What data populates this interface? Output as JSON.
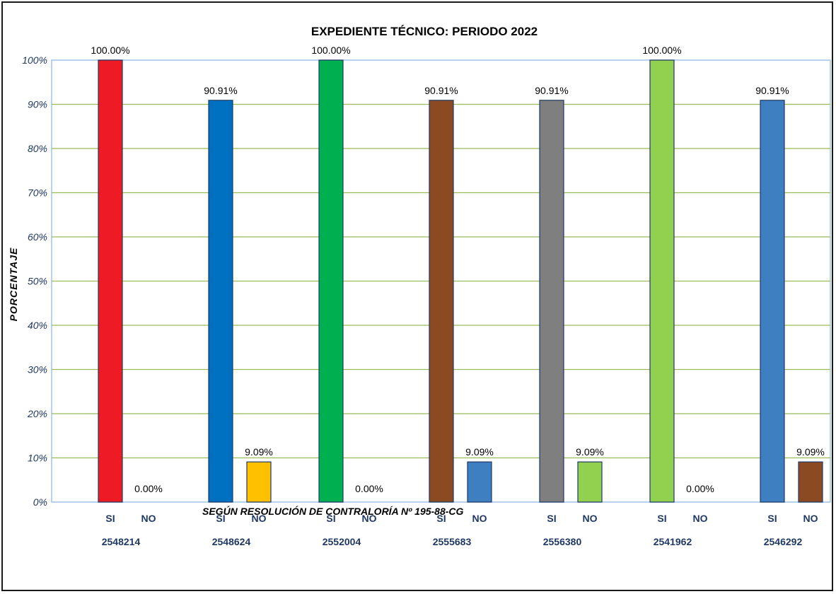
{
  "chart_data": {
    "type": "bar",
    "title": "EXPEDIENTE TÉCNICO: PERIODO 2022",
    "ylabel": "PORCENTAJE",
    "footnote": "SEGÚN RESOLUCIÓN DE CONTRALORÍA Nº 195-88-CG",
    "ylim": [
      0,
      100
    ],
    "yticks": [
      "0%",
      "10%",
      "20%",
      "30%",
      "40%",
      "50%",
      "60%",
      "70%",
      "80%",
      "90%",
      "100%"
    ],
    "grid": true,
    "groups": [
      {
        "name": "2548214",
        "bars": [
          {
            "category": "SI",
            "value": 100.0,
            "label": "100.00%",
            "color": "#ed1c24"
          },
          {
            "category": "NO",
            "value": 0.0,
            "label": "0.00%",
            "color": "#ffc000"
          }
        ]
      },
      {
        "name": "2548624",
        "bars": [
          {
            "category": "SI",
            "value": 90.91,
            "label": "90.91%",
            "color": "#0070c0"
          },
          {
            "category": "NO",
            "value": 9.09,
            "label": "9.09%",
            "color": "#ffc000"
          }
        ]
      },
      {
        "name": "2552004",
        "bars": [
          {
            "category": "SI",
            "value": 100.0,
            "label": "100.00%",
            "color": "#00b050"
          },
          {
            "category": "NO",
            "value": 0.0,
            "label": "0.00%",
            "color": "#ffc000"
          }
        ]
      },
      {
        "name": "2555683",
        "bars": [
          {
            "category": "SI",
            "value": 90.91,
            "label": "90.91%",
            "color": "#8b4a21"
          },
          {
            "category": "NO",
            "value": 9.09,
            "label": "9.09%",
            "color": "#3e7fc1"
          }
        ]
      },
      {
        "name": "2556380",
        "bars": [
          {
            "category": "SI",
            "value": 90.91,
            "label": "90.91%",
            "color": "#7f7f7f"
          },
          {
            "category": "NO",
            "value": 9.09,
            "label": "9.09%",
            "color": "#92d050"
          }
        ]
      },
      {
        "name": "2541962",
        "bars": [
          {
            "category": "SI",
            "value": 100.0,
            "label": "100.00%",
            "color": "#92d050"
          },
          {
            "category": "NO",
            "value": 0.0,
            "label": "0.00%",
            "color": "#92d050"
          }
        ]
      },
      {
        "name": "2546292",
        "bars": [
          {
            "category": "SI",
            "value": 90.91,
            "label": "90.91%",
            "color": "#3e7fc1"
          },
          {
            "category": "NO",
            "value": 9.09,
            "label": "9.09%",
            "color": "#8b4a21"
          }
        ]
      }
    ],
    "colors": {
      "grid": "#9bbb59",
      "plot_border": "#9dc3e6",
      "axis_text": "#1f3864",
      "bar_outline": "#1f3864"
    }
  }
}
